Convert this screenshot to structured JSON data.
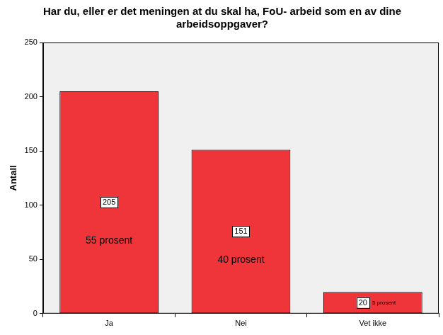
{
  "chart_data": {
    "type": "bar",
    "title": "Har du, eller er det meningen at du skal ha, FoU- arbeid som en av dine arbeidsoppgaver?",
    "y_label": "Antall",
    "categories": [
      "Ja",
      "Nei",
      "Vet ikke"
    ],
    "values": [
      205,
      151,
      20
    ],
    "annotations": [
      "55 prosent",
      "40 prosent",
      "5 prosent"
    ],
    "color": "#f0353a",
    "ylim": [
      0,
      250
    ],
    "yticks": [
      0,
      50,
      100,
      150,
      200,
      250
    ],
    "grid": false,
    "data_labels": true
  }
}
